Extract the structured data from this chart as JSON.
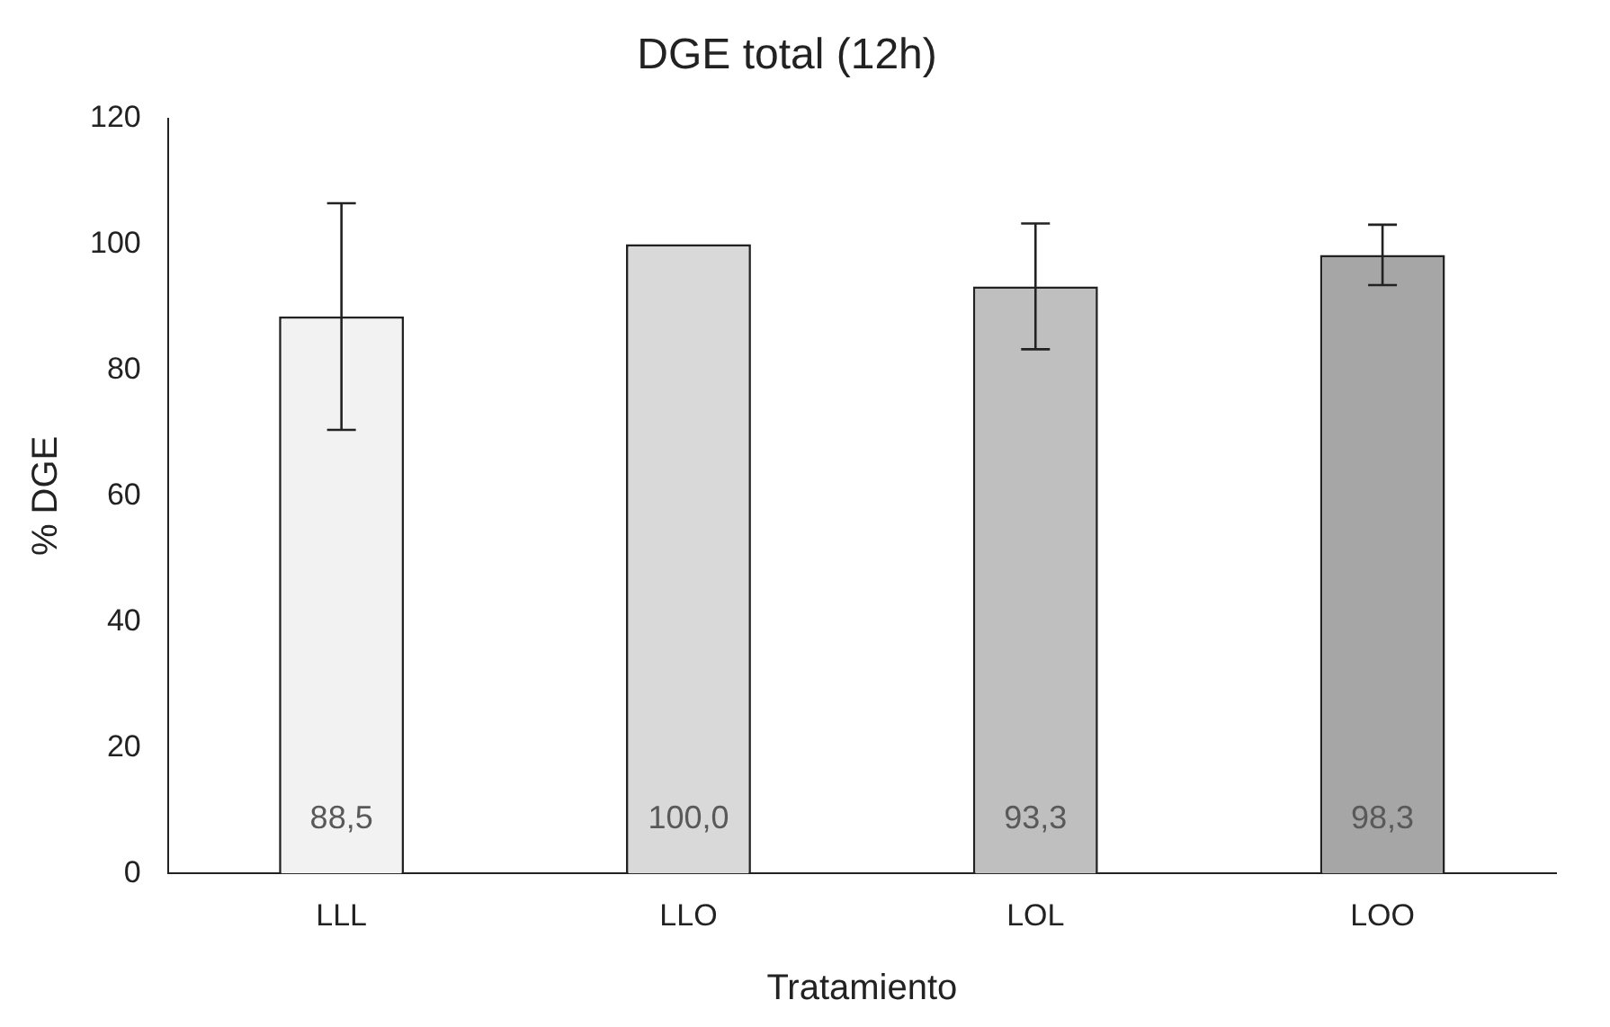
{
  "chart_data": {
    "type": "bar",
    "title": "DGE total (12h)",
    "xlabel": "Tratamiento",
    "ylabel": "% DGE",
    "categories": [
      "LLL",
      "LLO",
      "LOL",
      "LOO"
    ],
    "values": [
      88.5,
      100.0,
      93.3,
      98.3
    ],
    "colors": [
      "#f2f2f2",
      "#d9d9d9",
      "#bfbfbf",
      "#a6a6a6"
    ],
    "errors": [
      18,
      null,
      10,
      4.8
    ],
    "value_labels": [
      "88,5",
      "100,0",
      "93,3",
      "98,3"
    ],
    "ylim": [
      0,
      120
    ],
    "yticks": [
      0,
      20,
      40,
      60,
      80,
      100,
      120
    ],
    "grid": false,
    "legend": false
  }
}
